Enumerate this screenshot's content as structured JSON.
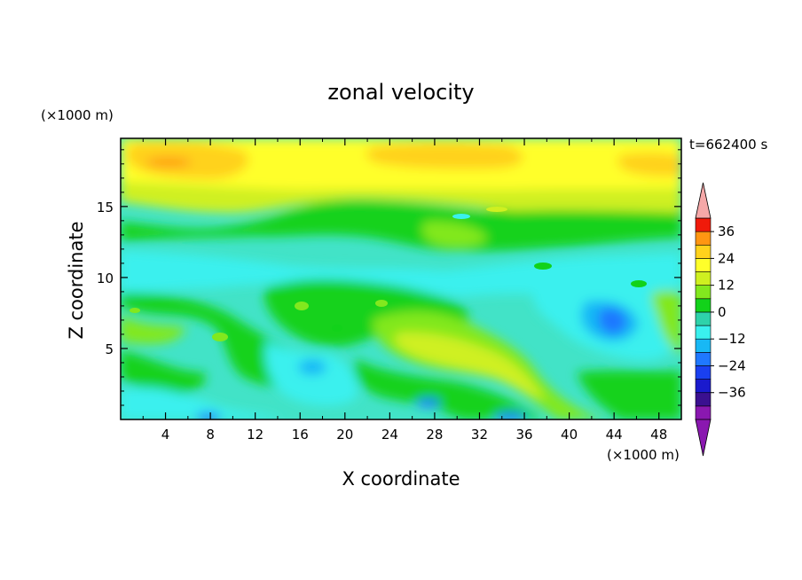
{
  "chart_data": {
    "type": "heatmap",
    "title": "zonal velocity",
    "xlabel": "X coordinate",
    "ylabel": "Z coordinate",
    "x_unit": "(×1000 m)",
    "y_unit": "(×1000 m)",
    "time_label": "t=662400 s",
    "xlim": [
      0,
      50
    ],
    "ylim": [
      0,
      19.8
    ],
    "x_ticks": [
      "4",
      "8",
      "12",
      "16",
      "20",
      "24",
      "28",
      "32",
      "36",
      "40",
      "44",
      "48"
    ],
    "y_ticks": [
      "5",
      "10",
      "15"
    ],
    "colorbar": {
      "levels": [
        -42,
        -36,
        -30,
        -24,
        -18,
        -12,
        -6,
        0,
        6,
        12,
        18,
        24,
        30,
        36,
        42
      ],
      "tick_labels": [
        "36",
        "24",
        "12",
        "0",
        "−12",
        "−24",
        "−36"
      ],
      "colors": [
        "#7a1aa0",
        "#3a1090",
        "#1a1acd",
        "#1a40f0",
        "#1f78ff",
        "#18b8f5",
        "#3af0ee",
        "#2ed2aa",
        "#12d21a",
        "#82e81e",
        "#cff020",
        "#ffff2a",
        "#ffd21c",
        "#ff9612",
        "#ff5a08",
        "#f01a0a",
        "#f5a8a8"
      ],
      "over_color": "#f5a8a8",
      "under_color": "#8a18b0"
    },
    "field_structure": [
      {
        "region": "upper layer z 16–19.8",
        "value_range": "12 to 24"
      },
      {
        "region": "band z 13–16",
        "value_range": "0 to 12"
      },
      {
        "region": "band z 9–13",
        "value_range": "-6 to 0"
      },
      {
        "region": "diagonal ridge from x 24,z 8 to x 40,z 0",
        "value_range": "6 to 12"
      },
      {
        "region": "core near x 44,z 7",
        "value_range": "-18 to -12"
      },
      {
        "region": "lower left z 0–9",
        "value_range": "-12 to 6"
      }
    ]
  }
}
